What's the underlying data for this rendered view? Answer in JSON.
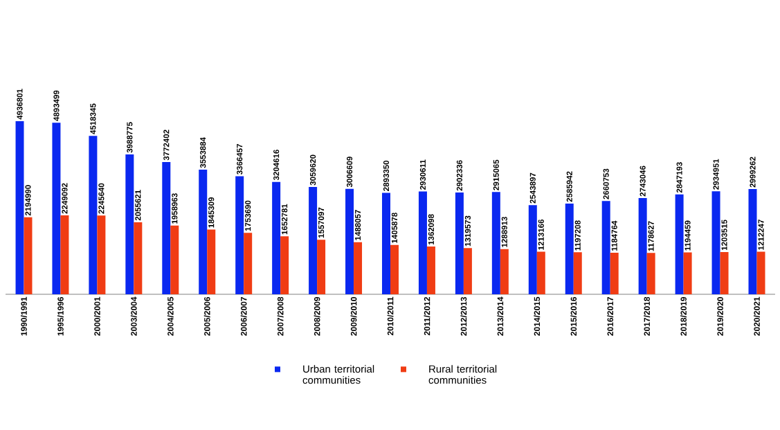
{
  "chart_data": {
    "type": "bar",
    "categories": [
      "1990/1991",
      "1995/1996",
      "2000/2001",
      "2003/2004",
      "2004/2005",
      "2005/2006",
      "2006/2007",
      "2007/2008",
      "2008/2009",
      "2009/2010",
      "2010/2011",
      "2011/2012",
      "2012/2013",
      "2013/2014",
      "2014/2015",
      "2015/2016",
      "2016/2017",
      "2017/2018",
      "2018/2019",
      "2019/2020",
      "2020/2021"
    ],
    "series": [
      {
        "name": "Urban territorial communities",
        "color": "#0a28f0",
        "values": [
          4936801,
          4893499,
          4518345,
          3988775,
          3772402,
          3553884,
          3366457,
          3204616,
          3059620,
          3006609,
          2893350,
          2930611,
          2902336,
          2915065,
          2543897,
          2585942,
          2660753,
          2743046,
          2847193,
          2934951,
          2999262
        ]
      },
      {
        "name": "Rural territorial communities",
        "color": "#f03c14",
        "values": [
          2194990,
          2249092,
          2245640,
          2055621,
          1958963,
          1845309,
          1753690,
          1652781,
          1557097,
          1488057,
          1405878,
          1362098,
          1319573,
          1288913,
          1213166,
          1197208,
          1184764,
          1178627,
          1194459,
          1203515,
          1212247
        ]
      }
    ],
    "data_labels": true,
    "legend": "bottom"
  }
}
